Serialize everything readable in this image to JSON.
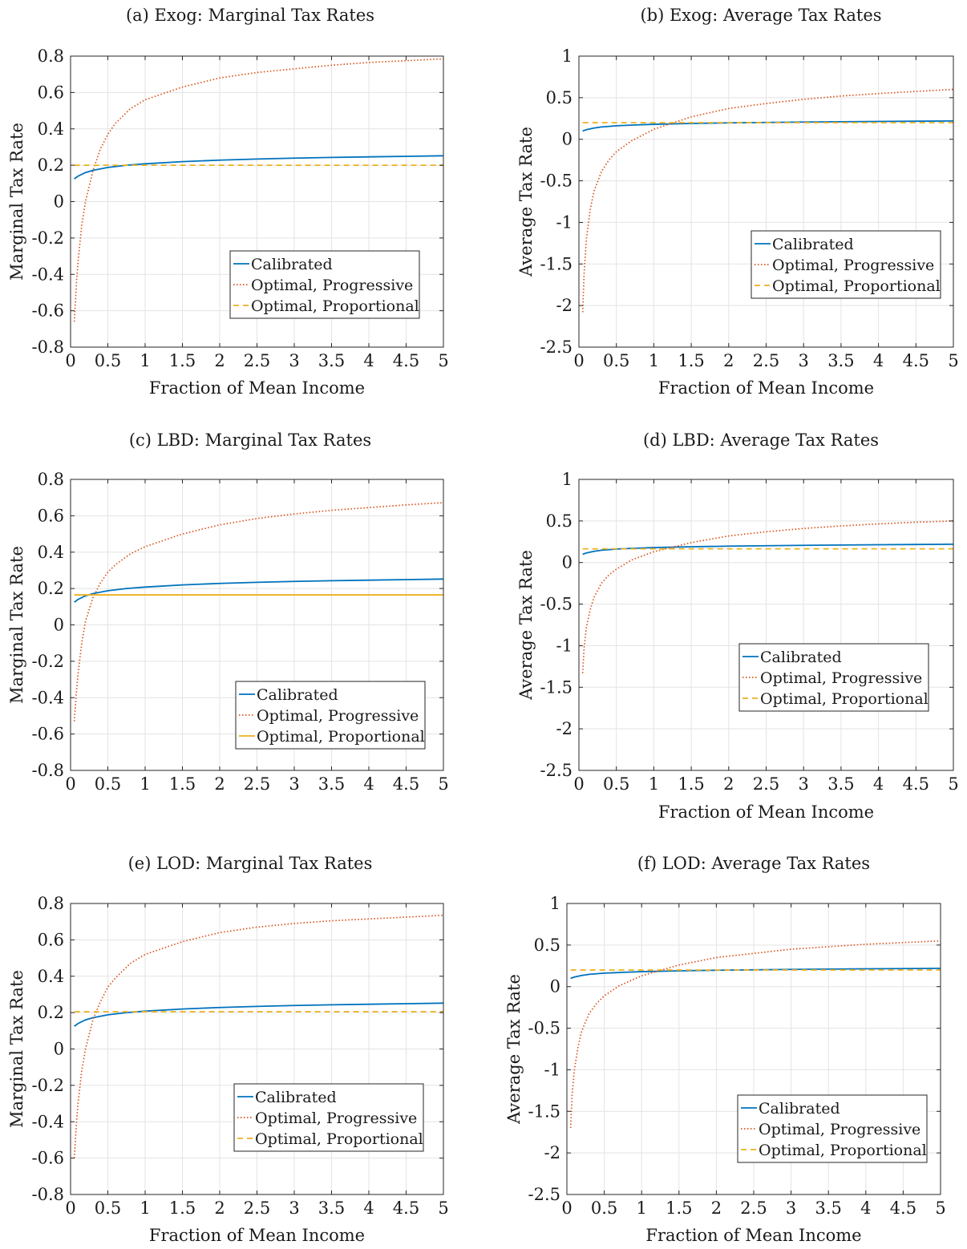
{
  "chart_data": [
    {
      "id": "a",
      "type": "line",
      "title": "(a) Exog: Marginal Tax Rates",
      "xlabel": "Fraction of Mean Income",
      "ylabel": "Marginal Tax Rate",
      "xlim": [
        0,
        5
      ],
      "ylim": [
        -0.8,
        0.8
      ],
      "xticks": [
        "0",
        "0.5",
        "1",
        "1.5",
        "2",
        "2.5",
        "3",
        "3.5",
        "4",
        "4.5",
        "5"
      ],
      "yticks": [
        "-0.8",
        "-0.6",
        "-0.4",
        "-0.2",
        "0",
        "0.2",
        "0.4",
        "0.6",
        "0.8"
      ],
      "grid": true,
      "legend_position": "lower-right",
      "series": [
        {
          "name": "Calibrated",
          "style": "solid",
          "color": "#0072BD",
          "x": [
            0.05,
            0.1,
            0.2,
            0.3,
            0.5,
            0.75,
            1,
            1.5,
            2,
            2.5,
            3,
            3.5,
            4,
            4.5,
            5
          ],
          "y": [
            0.125,
            0.14,
            0.16,
            0.172,
            0.188,
            0.2,
            0.208,
            0.22,
            0.228,
            0.234,
            0.239,
            0.243,
            0.246,
            0.249,
            0.252
          ]
        },
        {
          "name": "Optimal, Progressive",
          "style": "dotted",
          "color": "#D95319",
          "x": [
            0.05,
            0.08,
            0.1,
            0.15,
            0.2,
            0.3,
            0.4,
            0.5,
            0.6,
            0.8,
            1,
            1.5,
            2,
            2.5,
            3,
            3.5,
            4,
            4.5,
            5
          ],
          "y": [
            -0.66,
            -0.44,
            -0.33,
            -0.13,
            0.0,
            0.17,
            0.29,
            0.37,
            0.43,
            0.51,
            0.56,
            0.63,
            0.68,
            0.71,
            0.73,
            0.75,
            0.765,
            0.775,
            0.785
          ]
        },
        {
          "name": "Optimal, Proportional",
          "style": "dashed",
          "color": "#EDB120",
          "x": [
            0.05,
            5
          ],
          "y": [
            0.2,
            0.2
          ]
        }
      ]
    },
    {
      "id": "b",
      "type": "line",
      "title": "(b) Exog: Average Tax Rates",
      "xlabel": "Fraction of Mean Income",
      "ylabel": "Average Tax Rate",
      "xlim": [
        0,
        5
      ],
      "ylim": [
        -2.5,
        1
      ],
      "xticks": [
        "0",
        "0.5",
        "1",
        "1.5",
        "2",
        "2.5",
        "3",
        "3.5",
        "4",
        "4.5",
        "5"
      ],
      "yticks": [
        "-2.5",
        "-2",
        "-1.5",
        "-1",
        "-0.5",
        "0",
        "0.5",
        "1"
      ],
      "grid": true,
      "legend_position": "lower-right",
      "series": [
        {
          "name": "Calibrated",
          "style": "solid",
          "color": "#0072BD",
          "x": [
            0.05,
            0.1,
            0.2,
            0.3,
            0.5,
            0.75,
            1,
            1.5,
            2,
            3,
            4,
            5
          ],
          "y": [
            0.1,
            0.115,
            0.135,
            0.148,
            0.162,
            0.172,
            0.18,
            0.19,
            0.197,
            0.207,
            0.214,
            0.22
          ]
        },
        {
          "name": "Optimal, Progressive",
          "style": "dotted",
          "color": "#D95319",
          "x": [
            0.05,
            0.07,
            0.1,
            0.15,
            0.2,
            0.3,
            0.4,
            0.5,
            0.7,
            1,
            1.5,
            2,
            2.5,
            3,
            3.5,
            4,
            4.5,
            5
          ],
          "y": [
            -2.08,
            -1.6,
            -1.2,
            -0.85,
            -0.63,
            -0.39,
            -0.25,
            -0.15,
            -0.02,
            0.12,
            0.27,
            0.37,
            0.43,
            0.48,
            0.52,
            0.55,
            0.575,
            0.6
          ]
        },
        {
          "name": "Optimal, Proportional",
          "style": "dashed",
          "color": "#EDB120",
          "x": [
            0.05,
            5
          ],
          "y": [
            0.2,
            0.2
          ]
        }
      ]
    },
    {
      "id": "c",
      "type": "line",
      "title": "(c) LBD: Marginal Tax Rates",
      "xlabel": "",
      "ylabel": "Marginal Tax Rate",
      "xlim": [
        0,
        5
      ],
      "ylim": [
        -0.8,
        0.8
      ],
      "xticks": [
        "0",
        "0.5",
        "1",
        "1.5",
        "2",
        "2.5",
        "3",
        "3.5",
        "4",
        "4.5",
        "5"
      ],
      "yticks": [
        "-0.8",
        "-0.6",
        "-0.4",
        "-0.2",
        "0",
        "0.2",
        "0.4",
        "0.6",
        "0.8"
      ],
      "grid": true,
      "legend_position": "lower-right",
      "series": [
        {
          "name": "Calibrated",
          "style": "solid",
          "color": "#0072BD",
          "x": [
            0.05,
            0.1,
            0.2,
            0.3,
            0.5,
            0.75,
            1,
            1.5,
            2,
            2.5,
            3,
            3.5,
            4,
            4.5,
            5
          ],
          "y": [
            0.125,
            0.14,
            0.16,
            0.172,
            0.188,
            0.2,
            0.208,
            0.22,
            0.228,
            0.234,
            0.239,
            0.243,
            0.246,
            0.249,
            0.252
          ]
        },
        {
          "name": "Optimal, Progressive",
          "style": "dotted",
          "color": "#D95319",
          "x": [
            0.05,
            0.08,
            0.1,
            0.15,
            0.2,
            0.3,
            0.4,
            0.5,
            0.6,
            0.8,
            1,
            1.5,
            2,
            2.5,
            3,
            3.5,
            4,
            4.5,
            5
          ],
          "y": [
            -0.53,
            -0.36,
            -0.27,
            -0.1,
            0.02,
            0.15,
            0.23,
            0.29,
            0.33,
            0.39,
            0.43,
            0.5,
            0.55,
            0.585,
            0.61,
            0.63,
            0.645,
            0.66,
            0.672
          ]
        },
        {
          "name": "Optimal, Proportional",
          "style": "solid",
          "color": "#EDB120",
          "x": [
            0.05,
            5
          ],
          "y": [
            0.165,
            0.165
          ]
        }
      ]
    },
    {
      "id": "d",
      "type": "line",
      "title": "(d) LBD: Average Tax Rates",
      "xlabel": "Fraction of Mean Income",
      "ylabel": "Average Tax Rate",
      "xlim": [
        0,
        5
      ],
      "ylim": [
        -2.5,
        1
      ],
      "xticks": [
        "0",
        "0.5",
        "1",
        "1.5",
        "2",
        "2.5",
        "3",
        "3.5",
        "4",
        "4.5",
        "5"
      ],
      "yticks": [
        "-2.5",
        "-2",
        "-1.5",
        "-1",
        "-0.5",
        "0",
        "0.5",
        "1"
      ],
      "grid": true,
      "legend_position": "lower-right",
      "series": [
        {
          "name": "Calibrated",
          "style": "solid",
          "color": "#0072BD",
          "x": [
            0.05,
            0.1,
            0.2,
            0.3,
            0.5,
            0.75,
            1,
            1.5,
            2,
            3,
            4,
            5
          ],
          "y": [
            0.1,
            0.115,
            0.135,
            0.148,
            0.162,
            0.172,
            0.18,
            0.19,
            0.197,
            0.207,
            0.214,
            0.22
          ]
        },
        {
          "name": "Optimal, Progressive",
          "style": "dotted",
          "color": "#D95319",
          "x": [
            0.05,
            0.07,
            0.1,
            0.15,
            0.2,
            0.3,
            0.4,
            0.5,
            0.7,
            1,
            1.5,
            2,
            2.5,
            3,
            3.5,
            4,
            4.5,
            5
          ],
          "y": [
            -1.33,
            -1.02,
            -0.78,
            -0.57,
            -0.42,
            -0.25,
            -0.15,
            -0.08,
            0.03,
            0.13,
            0.24,
            0.32,
            0.37,
            0.41,
            0.44,
            0.465,
            0.485,
            0.5
          ]
        },
        {
          "name": "Optimal, Proportional",
          "style": "dashed",
          "color": "#EDB120",
          "x": [
            0.05,
            5
          ],
          "y": [
            0.165,
            0.165
          ]
        }
      ]
    },
    {
      "id": "e",
      "type": "line",
      "title": "(e) LOD: Marginal Tax Rates",
      "xlabel": "Fraction of Mean Income",
      "ylabel": "Marginal Tax Rate",
      "xlim": [
        0,
        5
      ],
      "ylim": [
        -0.8,
        0.8
      ],
      "xticks": [
        "0",
        "0.5",
        "1",
        "1.5",
        "2",
        "2.5",
        "3",
        "3.5",
        "4",
        "4.5",
        "5"
      ],
      "yticks": [
        "-0.8",
        "-0.6",
        "-0.4",
        "-0.2",
        "0",
        "0.2",
        "0.4",
        "0.6",
        "0.8"
      ],
      "grid": true,
      "legend_position": "lower-right",
      "series": [
        {
          "name": "Calibrated",
          "style": "solid",
          "color": "#0072BD",
          "x": [
            0.05,
            0.1,
            0.2,
            0.3,
            0.5,
            0.75,
            1,
            1.5,
            2,
            2.5,
            3,
            3.5,
            4,
            4.5,
            5
          ],
          "y": [
            0.125,
            0.14,
            0.16,
            0.172,
            0.188,
            0.2,
            0.208,
            0.22,
            0.228,
            0.234,
            0.239,
            0.243,
            0.246,
            0.249,
            0.252
          ]
        },
        {
          "name": "Optimal, Progressive",
          "style": "dotted",
          "color": "#D95319",
          "x": [
            0.05,
            0.08,
            0.1,
            0.15,
            0.2,
            0.3,
            0.4,
            0.5,
            0.6,
            0.8,
            1,
            1.5,
            2,
            2.5,
            3,
            3.5,
            4,
            4.5,
            5
          ],
          "y": [
            -0.6,
            -0.4,
            -0.3,
            -0.12,
            0.0,
            0.16,
            0.26,
            0.34,
            0.39,
            0.47,
            0.52,
            0.59,
            0.64,
            0.67,
            0.69,
            0.705,
            0.715,
            0.725,
            0.735
          ]
        },
        {
          "name": "Optimal, Proportional",
          "style": "dashed",
          "color": "#EDB120",
          "x": [
            0.05,
            5
          ],
          "y": [
            0.205,
            0.205
          ]
        }
      ]
    },
    {
      "id": "f",
      "type": "line",
      "title": "(f) LOD: Average Tax Rates",
      "xlabel": "Fraction of Mean Income",
      "ylabel": "Average Tax Rate",
      "xlim": [
        0,
        5
      ],
      "ylim": [
        -2.5,
        1
      ],
      "xticks": [
        "0",
        "0.5",
        "1",
        "1.5",
        "2",
        "2.5",
        "3",
        "3.5",
        "4",
        "4.5",
        "5"
      ],
      "yticks": [
        "-2.5",
        "-2",
        "-1.5",
        "-1",
        "-0.5",
        "0",
        "0.5",
        "1"
      ],
      "grid": true,
      "legend_position": "lower-right",
      "series": [
        {
          "name": "Calibrated",
          "style": "solid",
          "color": "#0072BD",
          "x": [
            0.05,
            0.1,
            0.2,
            0.3,
            0.5,
            0.75,
            1,
            1.5,
            2,
            3,
            4,
            5
          ],
          "y": [
            0.1,
            0.115,
            0.135,
            0.148,
            0.162,
            0.172,
            0.18,
            0.19,
            0.197,
            0.207,
            0.214,
            0.22
          ]
        },
        {
          "name": "Optimal, Progressive",
          "style": "dotted",
          "color": "#D95319",
          "x": [
            0.05,
            0.07,
            0.1,
            0.15,
            0.2,
            0.3,
            0.4,
            0.5,
            0.7,
            1,
            1.5,
            2,
            2.5,
            3,
            3.5,
            4,
            4.5,
            5
          ],
          "y": [
            -1.7,
            -1.3,
            -1.0,
            -0.72,
            -0.53,
            -0.32,
            -0.2,
            -0.11,
            0.01,
            0.13,
            0.26,
            0.35,
            0.4,
            0.45,
            0.48,
            0.51,
            0.53,
            0.55
          ]
        },
        {
          "name": "Optimal, Proportional",
          "style": "dashed",
          "color": "#EDB120",
          "x": [
            0.05,
            5
          ],
          "y": [
            0.2,
            0.2
          ]
        }
      ]
    }
  ]
}
